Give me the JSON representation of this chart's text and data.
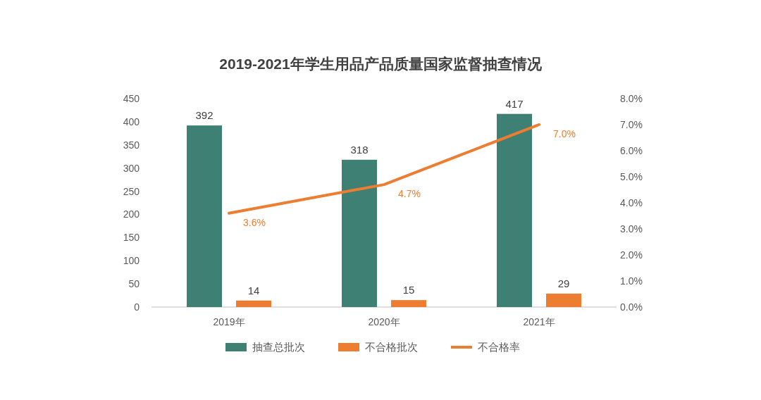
{
  "chart_data": {
    "type": "bar",
    "title": "2019-2021年学生用品产品质量国家监督抽查情况",
    "categories": [
      "2019年",
      "2020年",
      "2021年"
    ],
    "series": [
      {
        "name": "抽查总批次",
        "color": "#3e8073",
        "values": [
          392,
          318,
          417
        ],
        "value_labels": [
          "392",
          "318",
          "417"
        ]
      },
      {
        "name": "不合格批次",
        "color": "#ed7d31",
        "values": [
          14,
          15,
          29
        ],
        "value_labels": [
          "14",
          "15",
          "29"
        ]
      },
      {
        "name": "不合格率",
        "type": "line",
        "axis": "y2",
        "color": "#ed7d31",
        "values": [
          3.6,
          4.7,
          7.0
        ],
        "value_labels": [
          "3.6%",
          "4.7%",
          "7.0%"
        ]
      }
    ],
    "ylim": [
      0,
      450
    ],
    "yticks": [
      0,
      50,
      100,
      150,
      200,
      250,
      300,
      350,
      400,
      450
    ],
    "y2lim": [
      0,
      8
    ],
    "y2ticks": [
      {
        "value": 0,
        "label": "0.0%"
      },
      {
        "value": 1,
        "label": "1.0%"
      },
      {
        "value": 2,
        "label": "2.0%"
      },
      {
        "value": 3,
        "label": "3.0%"
      },
      {
        "value": 4,
        "label": "4.0%"
      },
      {
        "value": 5,
        "label": "5.0%"
      },
      {
        "value": 6,
        "label": "6.0%"
      },
      {
        "value": 7,
        "label": "7.0%"
      },
      {
        "value": 8,
        "label": "8.0%"
      }
    ],
    "legend": "bottom",
    "grid": false
  }
}
